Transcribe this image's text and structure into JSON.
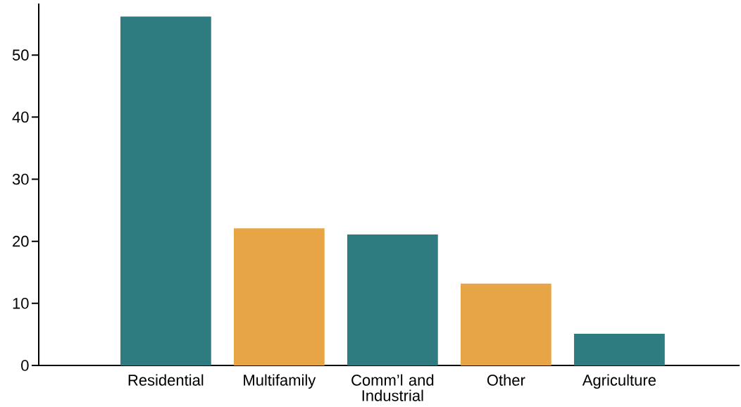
{
  "chart_data": {
    "type": "bar",
    "categories": [
      "Residential",
      "Multifamily",
      "Comm’l and Industrial",
      "Other",
      "Agriculture"
    ],
    "values": [
      56.2,
      22.1,
      21.1,
      13.2,
      5.1
    ],
    "colors": [
      "#2e7b80",
      "#e8a546",
      "#2e7b80",
      "#e8a546",
      "#2e7b80"
    ],
    "ylim": [
      0,
      58.3
    ],
    "yticks": [
      0,
      10,
      20,
      30,
      40,
      50
    ]
  }
}
